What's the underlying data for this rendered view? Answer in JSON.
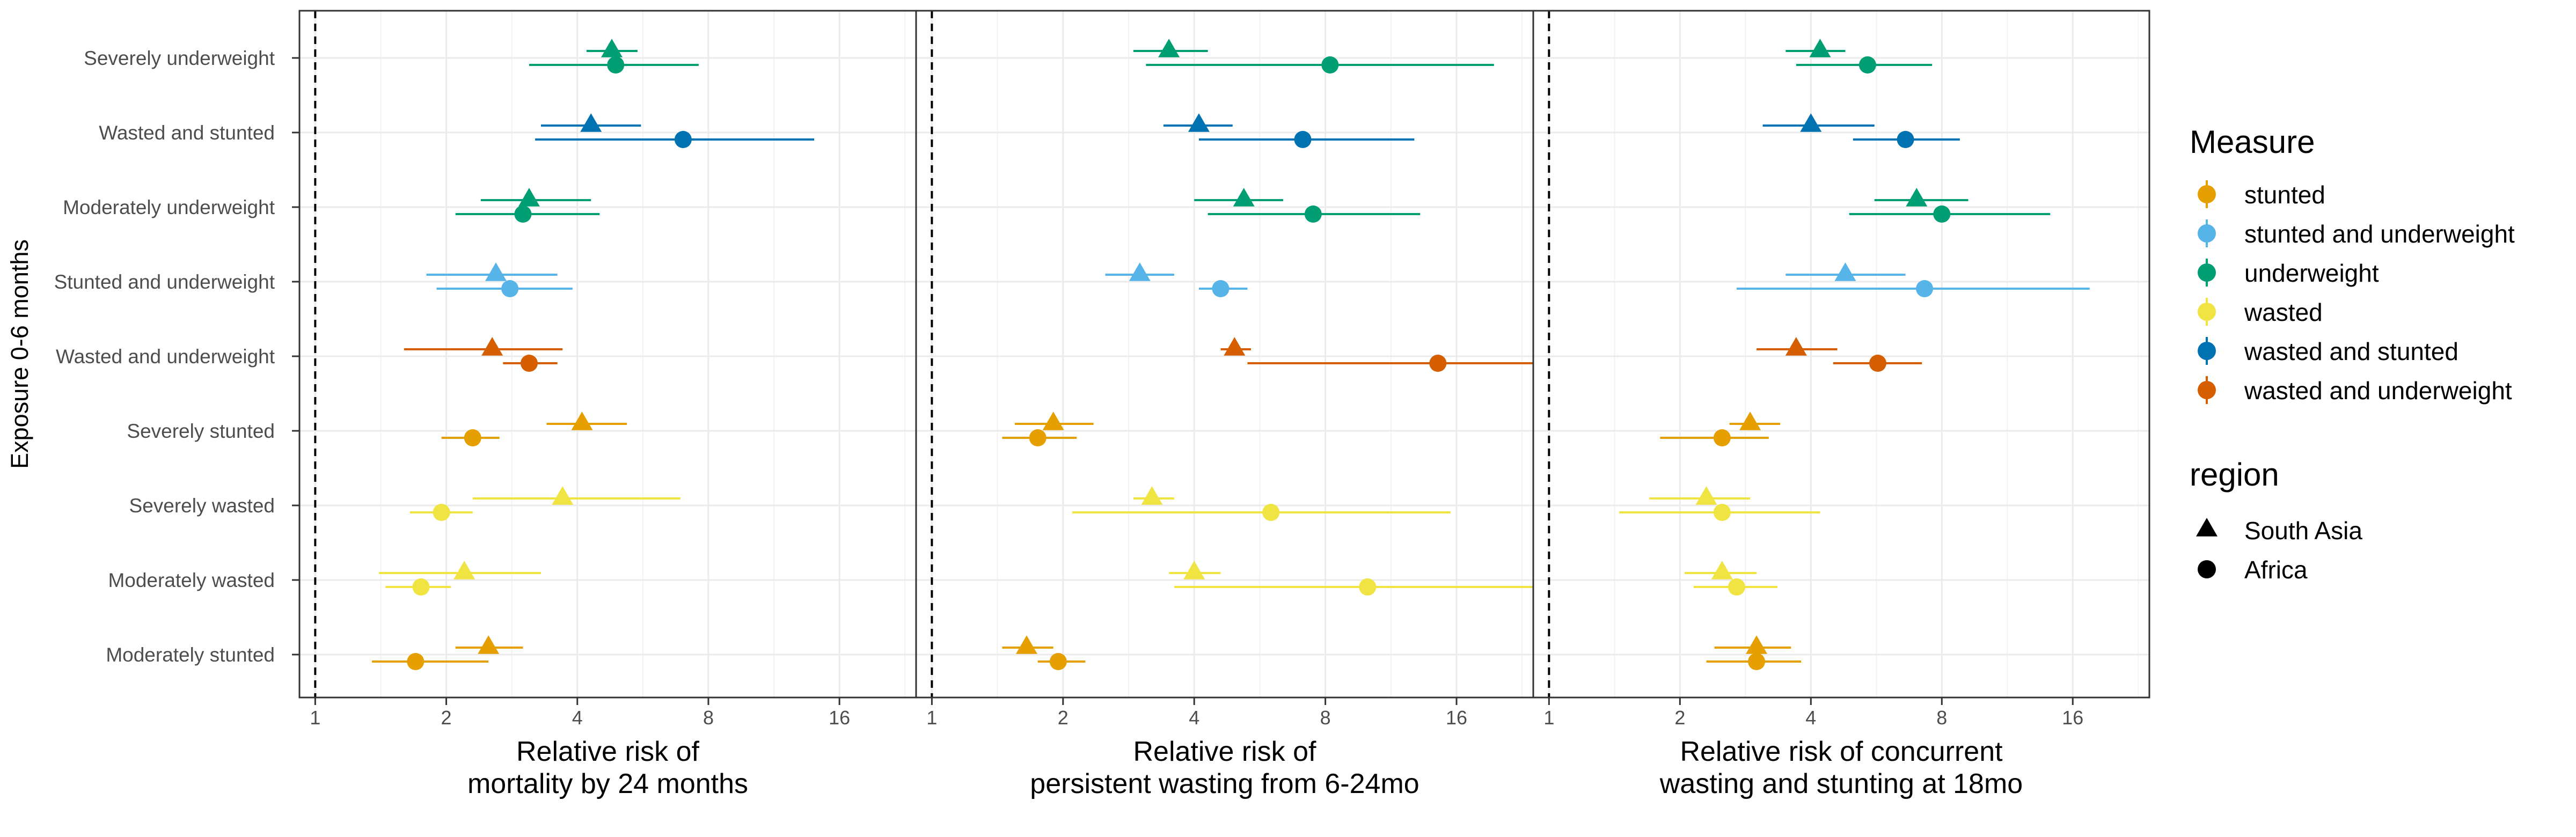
{
  "chart_data": {
    "type": "forest-plot",
    "ylabel": "Exposure 0-6 months",
    "x_scale": "log2",
    "xlim": [
      0.92,
      24
    ],
    "x_ticks": [
      1,
      2,
      4,
      8,
      16
    ],
    "x_tick_labels": [
      "1",
      "2",
      "4",
      "8",
      "16"
    ],
    "reference_line": 1,
    "categories": [
      "Severely underweight",
      "Wasted and stunted",
      "Moderately underweight",
      "Stunted and underweight",
      "Wasted and underweight",
      "Severely stunted",
      "Severely wasted",
      "Moderately wasted",
      "Moderately stunted"
    ],
    "category_measure": [
      "underweight",
      "wasted and stunted",
      "underweight",
      "stunted and underweight",
      "wasted and underweight",
      "stunted",
      "wasted",
      "wasted",
      "stunted"
    ],
    "panels": [
      {
        "xlabel": [
          "Relative risk of",
          "mortality by 24 months"
        ],
        "south_asia": [
          [
            4.8,
            4.2,
            5.5
          ],
          [
            4.3,
            3.3,
            5.6
          ],
          [
            3.1,
            2.4,
            4.3
          ],
          [
            2.6,
            1.8,
            3.6
          ],
          [
            2.55,
            1.6,
            3.7
          ],
          [
            4.1,
            3.4,
            5.2
          ],
          [
            3.7,
            2.3,
            6.9
          ],
          [
            2.2,
            1.4,
            3.3
          ],
          [
            2.5,
            2.1,
            3.0
          ]
        ],
        "africa": [
          [
            4.9,
            3.1,
            7.6
          ],
          [
            7.0,
            3.2,
            14.0
          ],
          [
            3.0,
            2.1,
            4.5
          ],
          [
            2.8,
            1.9,
            3.9
          ],
          [
            3.1,
            2.7,
            3.6
          ],
          [
            2.3,
            1.95,
            2.65
          ],
          [
            1.95,
            1.65,
            2.3
          ],
          [
            1.75,
            1.45,
            2.05
          ],
          [
            1.7,
            1.35,
            2.5
          ]
        ]
      },
      {
        "xlabel": [
          "Relative risk of",
          "persistent wasting from 6-24mo"
        ],
        "south_asia": [
          [
            3.5,
            2.9,
            4.3
          ],
          [
            4.1,
            3.4,
            4.9
          ],
          [
            5.2,
            4.0,
            6.4
          ],
          [
            3.0,
            2.5,
            3.6
          ],
          [
            4.95,
            4.6,
            5.4
          ],
          [
            1.9,
            1.55,
            2.35
          ],
          [
            3.2,
            2.9,
            3.6
          ],
          [
            4.0,
            3.5,
            4.6
          ],
          [
            1.65,
            1.45,
            1.9
          ]
        ],
        "africa": [
          [
            8.2,
            3.1,
            19.5
          ],
          [
            7.1,
            4.1,
            12.8
          ],
          [
            7.5,
            4.3,
            13.2
          ],
          [
            4.6,
            4.1,
            5.3
          ],
          [
            14.5,
            5.3,
            24
          ],
          [
            1.75,
            1.45,
            2.15
          ],
          [
            6.0,
            2.1,
            15.5
          ],
          [
            10.0,
            3.6,
            24
          ],
          [
            1.95,
            1.75,
            2.25
          ]
        ]
      },
      {
        "xlabel": [
          "Relative risk of concurrent",
          "wasting and stunting at 18mo"
        ],
        "south_asia": [
          [
            4.2,
            3.5,
            4.8
          ],
          [
            4.0,
            3.1,
            5.6
          ],
          [
            7.0,
            5.6,
            9.2
          ],
          [
            4.8,
            3.5,
            6.6
          ],
          [
            3.7,
            3.0,
            4.6
          ],
          [
            2.9,
            2.6,
            3.4
          ],
          [
            2.3,
            1.7,
            2.9
          ],
          [
            2.5,
            2.05,
            3.0
          ],
          [
            3.0,
            2.4,
            3.6
          ]
        ],
        "africa": [
          [
            5.4,
            3.7,
            7.6
          ],
          [
            6.6,
            5.0,
            8.8
          ],
          [
            8.0,
            4.9,
            14.2
          ],
          [
            7.3,
            2.7,
            17.5
          ],
          [
            5.7,
            4.5,
            7.2
          ],
          [
            2.5,
            1.8,
            3.2
          ],
          [
            2.5,
            1.45,
            4.2
          ],
          [
            2.7,
            2.15,
            3.35
          ],
          [
            3.0,
            2.3,
            3.8
          ]
        ]
      }
    ],
    "legend": {
      "measure_title": "Measure",
      "measures": [
        {
          "name": "stunted",
          "color": "#E69F00"
        },
        {
          "name": "stunted and underweight",
          "color": "#56B4E9"
        },
        {
          "name": "underweight",
          "color": "#009E73"
        },
        {
          "name": "wasted",
          "color": "#F0E442"
        },
        {
          "name": "wasted and stunted",
          "color": "#0072B2"
        },
        {
          "name": "wasted and underweight",
          "color": "#D55E00"
        }
      ],
      "region_title": "region",
      "regions": [
        {
          "name": "South Asia",
          "shape": "triangle"
        },
        {
          "name": "Africa",
          "shape": "circle"
        }
      ],
      "position": "right"
    }
  }
}
